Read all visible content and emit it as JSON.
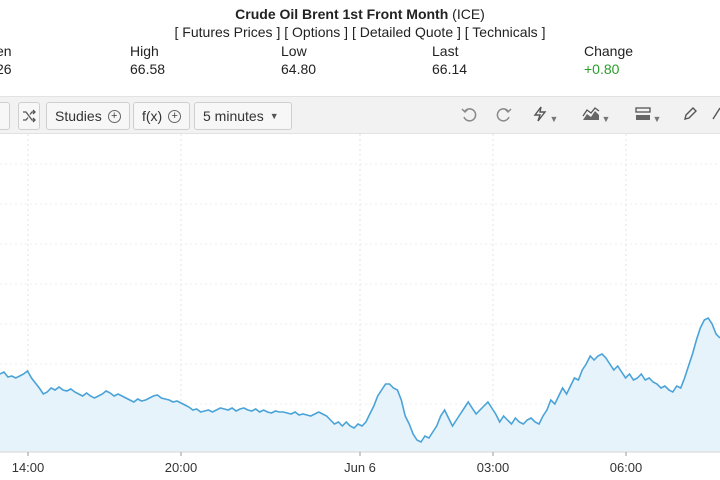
{
  "header": {
    "title_bold": "Crude Oil Brent 1st Front Month",
    "title_exchange": "(ICE)",
    "links": [
      "[ Futures Prices ]",
      "[ Options ]",
      "[ Detailed Quote ]",
      "[ Technicals ]"
    ]
  },
  "quote": {
    "open": {
      "label": "en",
      "value": "26"
    },
    "high": {
      "label": "High",
      "value": "66.58"
    },
    "low": {
      "label": "Low",
      "value": "64.80"
    },
    "last": {
      "label": "Last",
      "value": "66.14"
    },
    "change": {
      "label": "Change",
      "value": "+0.80"
    }
  },
  "toolbar": {
    "studies_label": "Studies",
    "fx_label": "f(x)",
    "interval_label": "5 minutes",
    "icons": [
      "shuffle-icon",
      "undo-icon",
      "redo-icon",
      "lightning-icon",
      "chart-style-icon",
      "layout-icon",
      "pencil-icon"
    ]
  },
  "chart_data": {
    "type": "area",
    "x_ticks": [
      "14:00",
      "20:00",
      "Jun 6",
      "03:00",
      "06:00"
    ],
    "line_color": "#4aa3d8",
    "fill_color": "#e6f3fb",
    "grid": true,
    "y_ticks_visible": false,
    "series": [
      {
        "values": [
          35.0,
          36.0,
          33.5,
          34.0,
          33.0,
          34.0,
          35.0,
          36.5,
          33.0,
          30.5,
          28.0,
          25.0,
          26.0,
          28.0,
          27.0,
          28.5,
          27.0,
          26.5,
          27.5,
          26.0,
          25.0,
          24.0,
          25.5,
          24.0,
          23.0,
          24.0,
          25.0,
          26.5,
          25.5,
          24.0,
          25.0,
          24.0,
          23.0,
          22.0,
          21.0,
          22.5,
          21.5,
          22.0,
          23.0,
          24.0,
          24.5,
          23.0,
          22.5,
          22.0,
          21.0,
          21.5,
          20.5,
          19.5,
          18.5,
          17.0,
          17.5,
          16.0,
          16.5,
          17.0,
          16.0,
          17.0,
          18.0,
          17.5,
          17.0,
          18.0,
          16.5,
          17.5,
          18.0,
          17.0,
          16.5,
          17.5,
          16.0,
          17.0,
          16.0,
          15.5,
          16.5,
          16.0,
          16.0,
          15.5,
          15.0,
          16.0,
          14.5,
          15.0,
          14.5,
          14.0,
          15.0,
          16.0,
          15.0,
          14.0,
          12.0,
          10.0,
          11.0,
          9.0,
          11.0,
          9.0,
          8.0,
          10.0,
          9.0,
          11.0,
          15.0,
          19.0,
          24.0,
          27.0,
          30.0,
          30.0,
          28.0,
          27.0,
          22.0,
          14.0,
          10.0,
          5.0,
          2.0,
          1.0,
          4.0,
          3.0,
          6.0,
          9.0,
          14.0,
          17.0,
          13.0,
          9.0,
          12.0,
          15.0,
          18.0,
          21.0,
          18.0,
          15.0,
          17.0,
          19.0,
          21.0,
          18.0,
          15.0,
          11.0,
          14.0,
          12.0,
          10.0,
          13.0,
          11.0,
          10.0,
          12.0,
          13.0,
          11.0,
          10.0,
          14.0,
          17.0,
          22.0,
          20.0,
          24.0,
          28.0,
          25.0,
          29.0,
          33.0,
          32.0,
          37.0,
          40.0,
          44.0,
          42.0,
          44.0,
          45.0,
          43.0,
          40.0,
          37.0,
          39.0,
          36.0,
          33.0,
          35.0,
          32.0,
          33.0,
          35.0,
          32.0,
          33.0,
          31.0,
          30.0,
          28.0,
          29.0,
          27.0,
          26.0,
          29.0,
          28.0,
          33.0,
          39.0,
          45.0,
          52.0,
          58.0,
          62.0,
          63.0,
          60.0,
          55.0,
          53.0
        ]
      }
    ]
  }
}
